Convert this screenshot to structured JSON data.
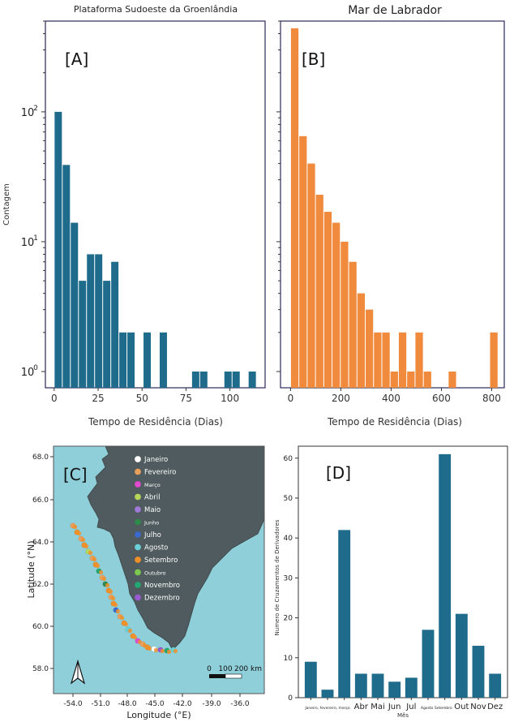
{
  "colors": {
    "teal": "#1e6b8c",
    "orange": "#f08a3c",
    "sea": "#8ecfd9",
    "land": "#4f5b5e"
  },
  "chart_data": [
    {
      "id": "A",
      "type": "bar",
      "scale": "log",
      "title": "Plataforma Sudoeste da Groenlândia",
      "panel_label": "[A]",
      "xlabel": "Tempo de Residência (Dias)",
      "ylabel": "Contagem",
      "xlim": [
        -5,
        120
      ],
      "ylim": [
        0.75,
        500
      ],
      "xticks": [
        "0",
        "25",
        "50",
        "75",
        "100"
      ],
      "xtick_values": [
        0,
        25,
        50,
        75,
        100
      ],
      "yticks": [
        "10",
        "10",
        "10"
      ],
      "ytick_exponents": [
        "0",
        "1",
        "2"
      ],
      "ytick_values": [
        1,
        10,
        100
      ],
      "bin_width": 4.6,
      "bin_starts": [
        0,
        4.6,
        9.2,
        13.8,
        18.4,
        23,
        27.6,
        32.2,
        36.8,
        41.4,
        46,
        50.6,
        55.2,
        59.8,
        64.4,
        69,
        73.6,
        78.2,
        82.8,
        87.4,
        92,
        96.6,
        101.2,
        105.8,
        110.4
      ],
      "values": [
        100,
        39,
        14,
        5,
        8,
        8,
        5,
        7,
        2,
        2,
        0,
        2,
        0,
        2,
        0,
        0,
        0,
        1,
        1,
        0,
        0,
        1,
        1,
        0,
        1
      ]
    },
    {
      "id": "B",
      "type": "bar",
      "scale": "log",
      "title": "Mar de Labrador",
      "panel_label": "[B]",
      "xlabel": "Tempo de Residência (Dias)",
      "ylabel": "",
      "xlim": [
        -40,
        850
      ],
      "ylim": [
        0.75,
        500
      ],
      "xticks": [
        "0",
        "200",
        "400",
        "600",
        "800"
      ],
      "xtick_values": [
        0,
        200,
        400,
        600,
        800
      ],
      "bin_width": 33,
      "bin_starts": [
        0,
        33,
        66,
        99,
        132,
        165,
        198,
        231,
        264,
        297,
        330,
        363,
        396,
        429,
        462,
        495,
        528,
        561,
        594,
        627,
        660,
        693,
        726,
        759,
        792
      ],
      "values": [
        440,
        65,
        40,
        23,
        17,
        14,
        10,
        7,
        4,
        3,
        2,
        2,
        1,
        2,
        1,
        2,
        1,
        0,
        0,
        1,
        0,
        0,
        0,
        0,
        2
      ]
    },
    {
      "id": "D",
      "type": "bar",
      "panel_label": "[D]",
      "xlabel": "Mês",
      "ylabel": "Numero de Cruzamentos de Derivadores",
      "ylim": [
        0,
        63
      ],
      "yticks": [
        "0",
        "10",
        "20",
        "30",
        "40",
        "50",
        "60"
      ],
      "ytick_values": [
        0,
        10,
        20,
        30,
        40,
        50,
        60
      ],
      "categories": [
        "Janeiro, fevereiro, março",
        "",
        "",
        "Abr",
        "Mai",
        "Jun",
        "Jul",
        "Agosto Setembro",
        "",
        "Out",
        "Nov",
        "Dez"
      ],
      "values": [
        9,
        2,
        42,
        6,
        6,
        4,
        5,
        17,
        61,
        21,
        13,
        6
      ]
    }
  ],
  "map": {
    "panel_label": "[C]",
    "xlabel": "Longitude (°E)",
    "ylabel": "Latitude (°N)",
    "xticks": [
      "-54.0",
      "-51.0",
      "-48.0",
      "-45.0",
      "-42.0",
      "-39.0",
      "-36.0"
    ],
    "yticks": [
      "68.0",
      "66.0",
      "64.0",
      "62.0",
      "60.0",
      "58.0"
    ],
    "scale_bar": [
      "0",
      "100",
      "200 km"
    ],
    "legend": [
      {
        "label": "Janeiro",
        "color": "#ffffff"
      },
      {
        "label": "Fevereiro",
        "color": "#e8a05c"
      },
      {
        "label": "Março",
        "color": "#e04ad0"
      },
      {
        "label": "Abril",
        "color": "#b6d65a"
      },
      {
        "label": "Maio",
        "color": "#a07ad8"
      },
      {
        "label": "Junho",
        "color": "#2e8a4a"
      },
      {
        "label": "Julho",
        "color": "#3a6ad0"
      },
      {
        "label": "Agosto",
        "color": "#6ad0d8"
      },
      {
        "label": "Setembro",
        "color": "#f0902a"
      },
      {
        "label": "Outubro",
        "color": "#7ac850"
      },
      {
        "label": "Novembro",
        "color": "#22a870"
      },
      {
        "label": "Dezembro",
        "color": "#9a5ad0"
      }
    ]
  }
}
